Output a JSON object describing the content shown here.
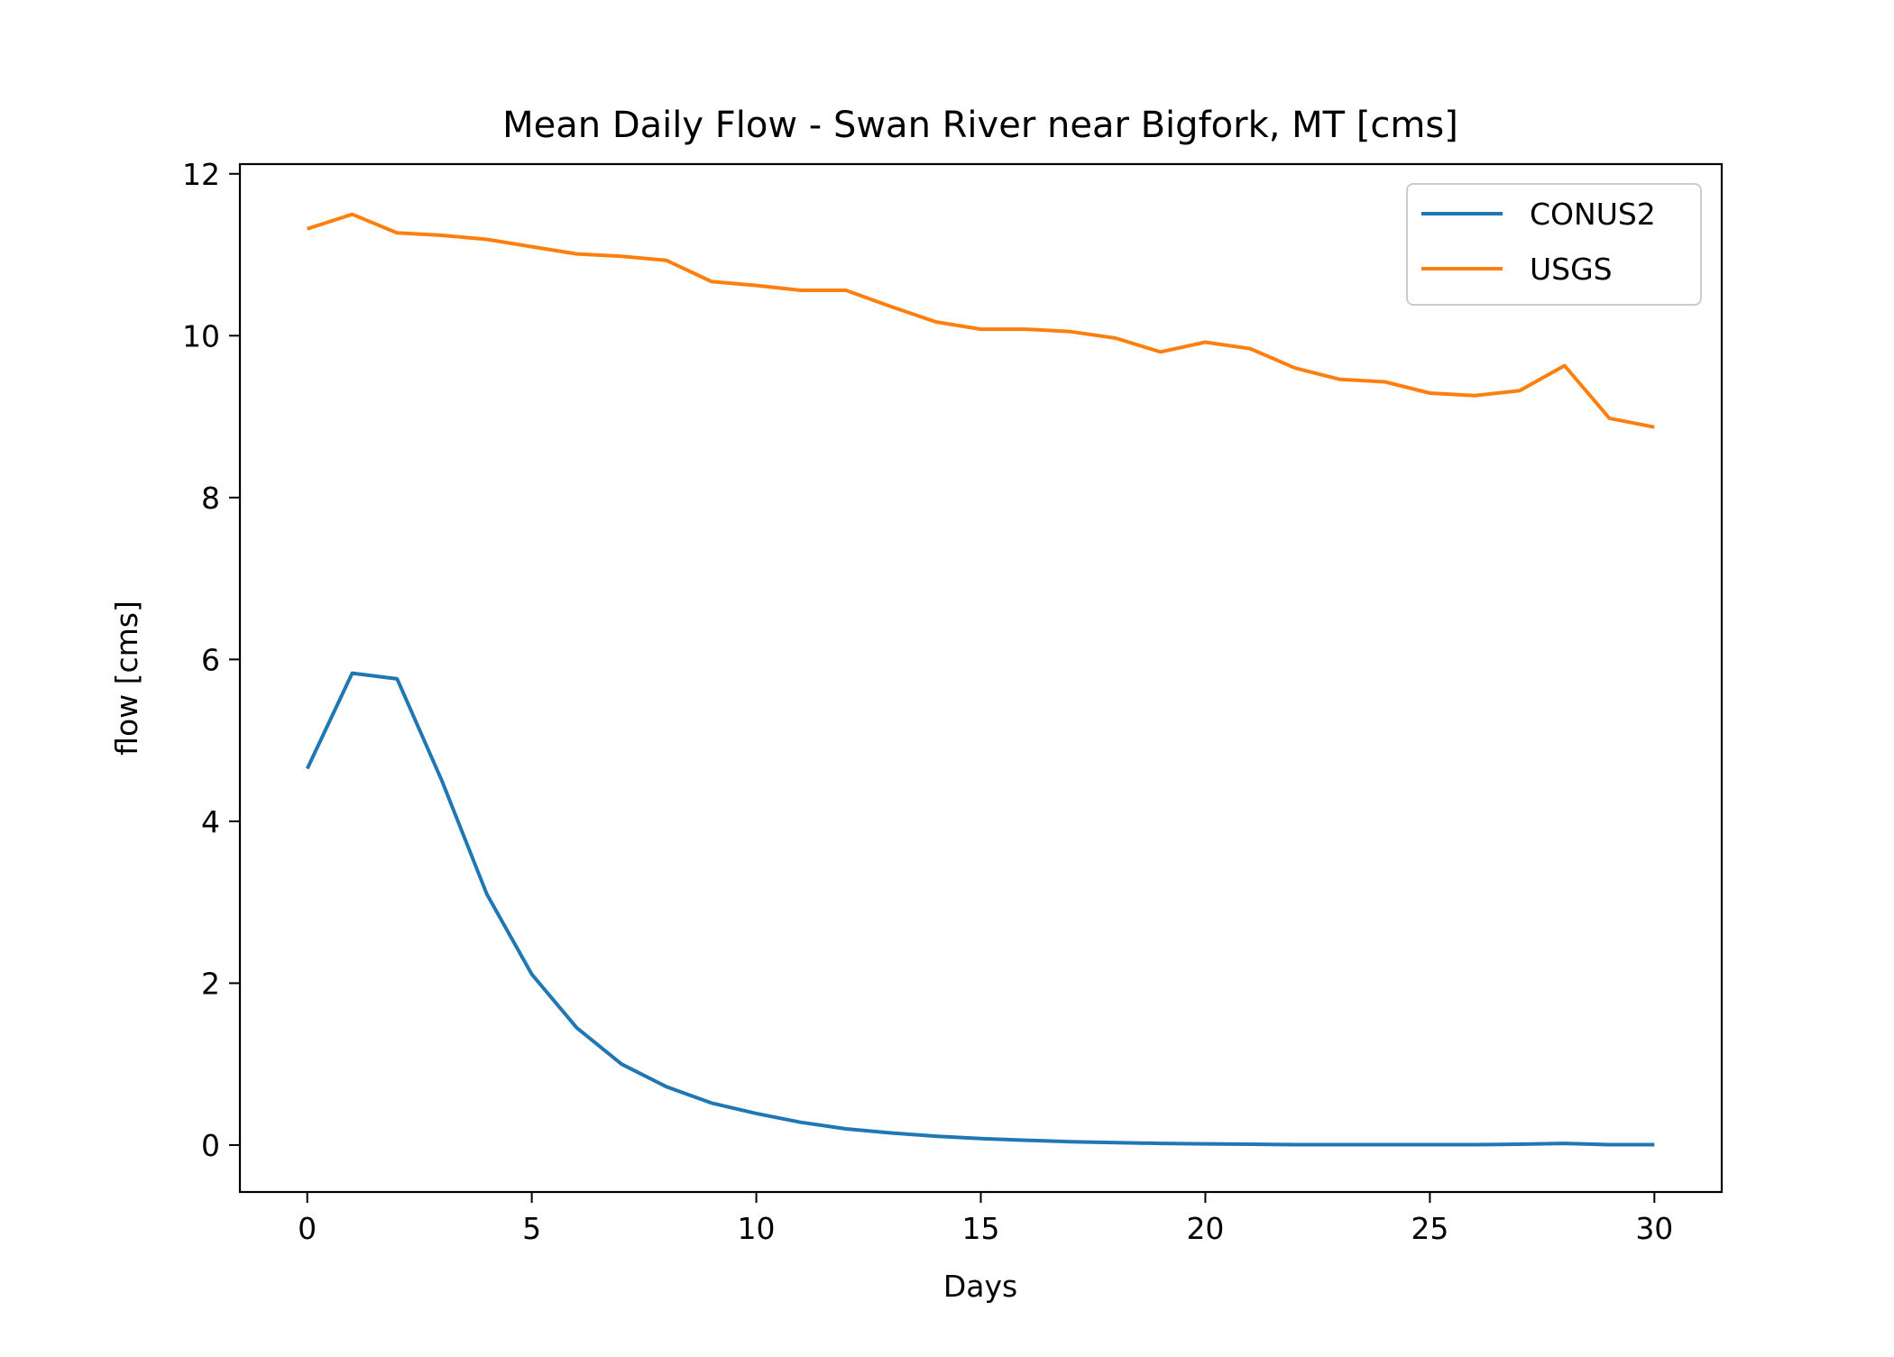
{
  "chart_data": {
    "type": "line",
    "title": "Mean Daily Flow - Swan River near Bigfork, MT [cms]",
    "xlabel": "Days",
    "ylabel": "flow [cms]",
    "xlim": [
      -1.5,
      31.5
    ],
    "ylim": [
      -0.58,
      12.12
    ],
    "xticks": [
      0,
      5,
      10,
      15,
      20,
      25,
      30
    ],
    "xtick_labels": [
      "0",
      "5",
      "10",
      "15",
      "20",
      "25",
      "30"
    ],
    "yticks": [
      0,
      2,
      4,
      6,
      8,
      10,
      12
    ],
    "ytick_labels": [
      "0",
      "2",
      "4",
      "6",
      "8",
      "10",
      "12"
    ],
    "grid": false,
    "legend_position": "top-right",
    "x": [
      0,
      1,
      2,
      3,
      4,
      5,
      6,
      7,
      8,
      9,
      10,
      11,
      12,
      13,
      14,
      15,
      16,
      17,
      18,
      19,
      20,
      21,
      22,
      23,
      24,
      25,
      26,
      27,
      28,
      29,
      30
    ],
    "series": [
      {
        "name": "CONUS2",
        "color": "#1f77b4",
        "values": [
          4.65,
          5.83,
          5.76,
          4.5,
          3.1,
          2.11,
          1.45,
          1.0,
          0.72,
          0.52,
          0.39,
          0.28,
          0.2,
          0.15,
          0.11,
          0.08,
          0.06,
          0.04,
          0.03,
          0.02,
          0.015,
          0.01,
          0.005,
          0.005,
          0.005,
          0.005,
          0.005,
          0.01,
          0.02,
          0.005,
          0.005
        ]
      },
      {
        "name": "USGS",
        "color": "#ff7f0e",
        "values": [
          11.32,
          11.5,
          11.27,
          11.24,
          11.19,
          11.1,
          11.01,
          10.98,
          10.93,
          10.67,
          10.62,
          10.56,
          10.56,
          10.36,
          10.17,
          10.08,
          10.08,
          10.05,
          9.97,
          9.8,
          9.92,
          9.84,
          9.6,
          9.46,
          9.43,
          9.29,
          9.26,
          9.32,
          9.63,
          8.98,
          8.87
        ]
      }
    ]
  }
}
